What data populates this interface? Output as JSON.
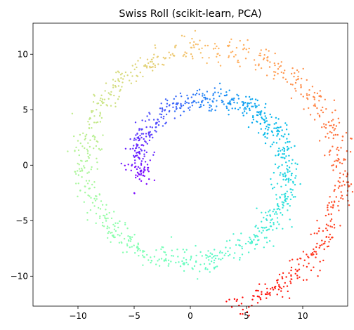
{
  "chart_data": {
    "type": "scatter",
    "title": "Swiss Roll (scikit-learn, PCA)",
    "xlabel": "",
    "ylabel": "",
    "xlim": [
      -14,
      14
    ],
    "ylim": [
      -12.7,
      12.8
    ],
    "xticks": [
      -10,
      -5,
      0,
      5,
      10
    ],
    "yticks": [
      -10,
      -5,
      0,
      5,
      10
    ],
    "xtick_labels": [
      "−10",
      "−5",
      "0",
      "5",
      "10"
    ],
    "ytick_labels": [
      "−10",
      "−5",
      "0",
      "5",
      "10"
    ],
    "grid": false,
    "legend": "none",
    "colormap": "rainbow",
    "marker_size": 2,
    "n_points": 1500,
    "spiral": {
      "center": [
        0.4,
        -0.2
      ],
      "t_range": [
        4.71,
        14.14
      ],
      "scale": 0.9,
      "noise": 0.6,
      "direction": "outer end at top-right (x≈12, y≈9), inner end near (−5, −1.5)"
    },
    "series": [
      {
        "values_note": "swiss roll points colored by roll parameter (purple → red)"
      }
    ]
  }
}
